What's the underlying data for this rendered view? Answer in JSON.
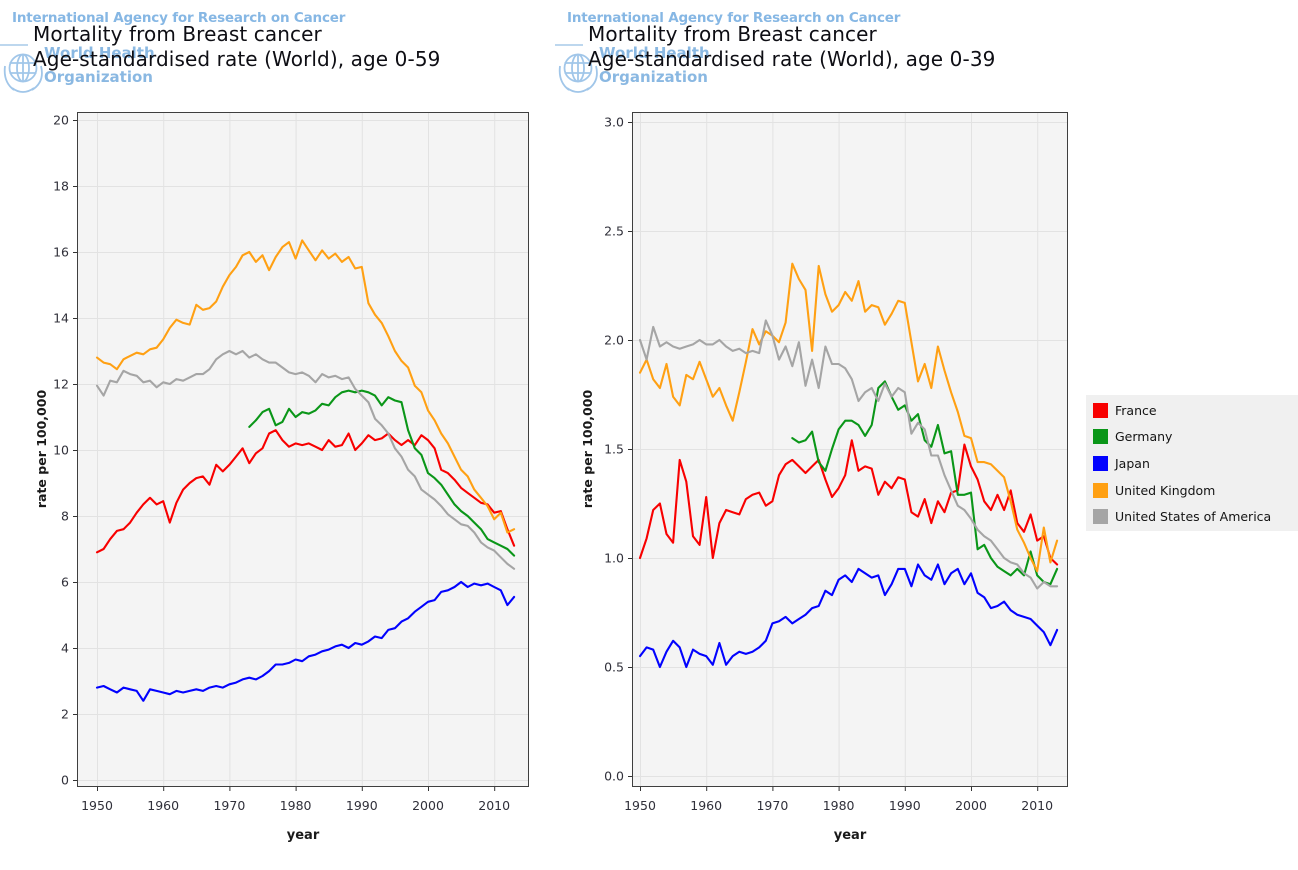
{
  "watermark": {
    "iarc": "International Agency for Research on Cancer",
    "who_line1": "World Health",
    "who_line2": "Organization"
  },
  "legend": {
    "items": [
      {
        "label": "France",
        "color": "#f80000"
      },
      {
        "label": "Germany",
        "color": "#0a9618"
      },
      {
        "label": "Japan",
        "color": "#0202fe"
      },
      {
        "label": "United Kingdom",
        "color": "#ffa013"
      },
      {
        "label": "United States of America",
        "color": "#a5a5a5"
      }
    ]
  },
  "chart_data": [
    {
      "type": "line",
      "title_line1": "Mortality from Breast cancer",
      "title_line2": "Age-standardised rate (World), age 0-59",
      "xlabel": "year",
      "ylabel": "rate per 100,000",
      "x_start": 1950,
      "x_end": 2013,
      "xticks": [
        1950,
        1960,
        1970,
        1980,
        1990,
        2000,
        2010
      ],
      "ylim": [
        0,
        20
      ],
      "yticks": [
        0,
        2,
        4,
        6,
        8,
        10,
        12,
        14,
        16,
        18,
        20
      ],
      "ytick_labels": [
        "0",
        "2",
        "4",
        "6",
        "8",
        "10",
        "12",
        "14",
        "16",
        "18",
        "20"
      ],
      "grid": true,
      "legend_position": "right-of-second-panel",
      "series": [
        {
          "name": "France",
          "color": "#f80000",
          "start_year": 1950,
          "values": [
            6.9,
            7.0,
            7.3,
            7.55,
            7.6,
            7.8,
            8.1,
            8.35,
            8.55,
            8.35,
            8.45,
            7.8,
            8.4,
            8.8,
            9.0,
            9.15,
            9.2,
            8.95,
            9.55,
            9.35,
            9.55,
            9.8,
            10.05,
            9.6,
            9.9,
            10.05,
            10.5,
            10.6,
            10.3,
            10.1,
            10.2,
            10.15,
            10.2,
            10.1,
            10.0,
            10.3,
            10.1,
            10.15,
            10.5,
            10.0,
            10.2,
            10.45,
            10.3,
            10.35,
            10.5,
            10.3,
            10.15,
            10.3,
            10.15,
            10.45,
            10.3,
            10.05,
            9.4,
            9.3,
            9.1,
            8.85,
            8.7,
            8.55,
            8.4,
            8.35,
            8.1,
            8.15,
            7.6,
            7.1
          ]
        },
        {
          "name": "Germany",
          "color": "#0a9618",
          "start_year": 1973,
          "values": [
            10.7,
            10.9,
            11.15,
            11.25,
            10.75,
            10.85,
            11.25,
            11.0,
            11.15,
            11.1,
            11.2,
            11.4,
            11.35,
            11.6,
            11.75,
            11.8,
            11.75,
            11.8,
            11.75,
            11.65,
            11.35,
            11.6,
            11.5,
            11.45,
            10.6,
            10.05,
            9.85,
            9.3,
            9.15,
            8.95,
            8.65,
            8.35,
            8.15,
            8.0,
            7.8,
            7.6,
            7.3,
            7.2,
            7.1,
            7.0,
            6.8
          ]
        },
        {
          "name": "Japan",
          "color": "#0202fe",
          "start_year": 1950,
          "values": [
            2.8,
            2.85,
            2.75,
            2.65,
            2.8,
            2.75,
            2.7,
            2.4,
            2.75,
            2.7,
            2.65,
            2.6,
            2.7,
            2.65,
            2.7,
            2.75,
            2.7,
            2.8,
            2.85,
            2.8,
            2.9,
            2.95,
            3.05,
            3.1,
            3.05,
            3.15,
            3.3,
            3.5,
            3.5,
            3.55,
            3.65,
            3.6,
            3.75,
            3.8,
            3.9,
            3.95,
            4.05,
            4.1,
            4.0,
            4.15,
            4.1,
            4.2,
            4.35,
            4.3,
            4.55,
            4.6,
            4.8,
            4.9,
            5.1,
            5.25,
            5.4,
            5.45,
            5.7,
            5.75,
            5.85,
            6.0,
            5.85,
            5.95,
            5.9,
            5.95,
            5.85,
            5.75,
            5.3,
            5.55
          ]
        },
        {
          "name": "United Kingdom",
          "color": "#ffa013",
          "start_year": 1950,
          "values": [
            12.8,
            12.65,
            12.6,
            12.45,
            12.75,
            12.85,
            12.95,
            12.9,
            13.05,
            13.1,
            13.35,
            13.7,
            13.95,
            13.85,
            13.8,
            14.4,
            14.25,
            14.3,
            14.5,
            14.95,
            15.3,
            15.55,
            15.9,
            16.0,
            15.7,
            15.9,
            15.45,
            15.85,
            16.15,
            16.3,
            15.8,
            16.35,
            16.05,
            15.75,
            16.05,
            15.8,
            15.95,
            15.7,
            15.85,
            15.5,
            15.55,
            14.45,
            14.1,
            13.85,
            13.45,
            13.0,
            12.7,
            12.5,
            11.95,
            11.75,
            11.2,
            10.9,
            10.5,
            10.2,
            9.8,
            9.4,
            9.2,
            8.8,
            8.55,
            8.3,
            7.9,
            8.1,
            7.5,
            7.6
          ]
        },
        {
          "name": "United States of America",
          "color": "#a5a5a5",
          "start_year": 1950,
          "values": [
            11.95,
            11.65,
            12.1,
            12.05,
            12.4,
            12.3,
            12.25,
            12.05,
            12.1,
            11.9,
            12.05,
            12.0,
            12.15,
            12.1,
            12.2,
            12.3,
            12.3,
            12.45,
            12.75,
            12.9,
            13.0,
            12.9,
            13.0,
            12.8,
            12.9,
            12.75,
            12.65,
            12.65,
            12.5,
            12.35,
            12.3,
            12.35,
            12.25,
            12.05,
            12.3,
            12.2,
            12.25,
            12.15,
            12.2,
            11.85,
            11.65,
            11.45,
            10.95,
            10.75,
            10.5,
            10.05,
            9.8,
            9.4,
            9.2,
            8.8,
            8.65,
            8.5,
            8.3,
            8.05,
            7.9,
            7.75,
            7.7,
            7.5,
            7.2,
            7.05,
            6.95,
            6.75,
            6.55,
            6.4
          ]
        }
      ]
    },
    {
      "type": "line",
      "title_line1": "Mortality from Breast cancer",
      "title_line2": "Age-standardised rate (World), age 0-39",
      "xlabel": "year",
      "ylabel": "rate per 100,000",
      "x_start": 1950,
      "x_end": 2013,
      "xticks": [
        1950,
        1960,
        1970,
        1980,
        1990,
        2000,
        2010
      ],
      "ylim": [
        0,
        3
      ],
      "yticks": [
        0,
        0.5,
        1,
        1.5,
        2,
        2.5,
        3
      ],
      "ytick_labels": [
        "0.0",
        "0.5",
        "1.0",
        "1.5",
        "2.0",
        "2.5",
        "3.0"
      ],
      "grid": true,
      "legend_position": "right",
      "series": [
        {
          "name": "France",
          "color": "#f80000",
          "start_year": 1950,
          "values": [
            1.0,
            1.09,
            1.22,
            1.25,
            1.11,
            1.07,
            1.45,
            1.35,
            1.1,
            1.06,
            1.28,
            1.0,
            1.16,
            1.22,
            1.21,
            1.2,
            1.27,
            1.29,
            1.3,
            1.24,
            1.26,
            1.38,
            1.43,
            1.45,
            1.42,
            1.39,
            1.42,
            1.45,
            1.36,
            1.28,
            1.32,
            1.38,
            1.54,
            1.4,
            1.42,
            1.41,
            1.29,
            1.35,
            1.32,
            1.37,
            1.36,
            1.21,
            1.19,
            1.27,
            1.16,
            1.26,
            1.21,
            1.3,
            1.31,
            1.52,
            1.42,
            1.36,
            1.26,
            1.22,
            1.29,
            1.22,
            1.31,
            1.16,
            1.12,
            1.2,
            1.08,
            1.1,
            1.0,
            0.97
          ]
        },
        {
          "name": "Germany",
          "color": "#0a9618",
          "start_year": 1973,
          "values": [
            1.55,
            1.53,
            1.54,
            1.58,
            1.44,
            1.4,
            1.5,
            1.59,
            1.63,
            1.63,
            1.61,
            1.56,
            1.61,
            1.78,
            1.81,
            1.74,
            1.68,
            1.7,
            1.63,
            1.66,
            1.54,
            1.51,
            1.61,
            1.48,
            1.49,
            1.29,
            1.29,
            1.3,
            1.04,
            1.06,
            1.0,
            0.96,
            0.94,
            0.92,
            0.95,
            0.92,
            1.03,
            0.92,
            0.89,
            0.88,
            0.95
          ]
        },
        {
          "name": "Japan",
          "color": "#0202fe",
          "start_year": 1950,
          "values": [
            0.55,
            0.59,
            0.58,
            0.5,
            0.57,
            0.62,
            0.59,
            0.5,
            0.58,
            0.56,
            0.55,
            0.51,
            0.61,
            0.51,
            0.55,
            0.57,
            0.56,
            0.57,
            0.59,
            0.62,
            0.7,
            0.71,
            0.73,
            0.7,
            0.72,
            0.74,
            0.77,
            0.78,
            0.85,
            0.83,
            0.9,
            0.92,
            0.89,
            0.95,
            0.93,
            0.91,
            0.92,
            0.83,
            0.88,
            0.95,
            0.95,
            0.87,
            0.97,
            0.92,
            0.9,
            0.97,
            0.88,
            0.93,
            0.95,
            0.88,
            0.93,
            0.84,
            0.82,
            0.77,
            0.78,
            0.8,
            0.76,
            0.74,
            0.73,
            0.72,
            0.69,
            0.66,
            0.6,
            0.67
          ]
        },
        {
          "name": "United Kingdom",
          "color": "#ffa013",
          "start_year": 1950,
          "values": [
            1.85,
            1.91,
            1.82,
            1.78,
            1.89,
            1.74,
            1.7,
            1.84,
            1.82,
            1.9,
            1.82,
            1.74,
            1.78,
            1.7,
            1.63,
            1.76,
            1.9,
            2.05,
            1.98,
            2.04,
            2.02,
            1.99,
            2.08,
            2.35,
            2.28,
            2.23,
            1.95,
            2.34,
            2.21,
            2.13,
            2.16,
            2.22,
            2.18,
            2.27,
            2.13,
            2.16,
            2.15,
            2.07,
            2.12,
            2.18,
            2.17,
            1.99,
            1.81,
            1.89,
            1.78,
            1.97,
            1.86,
            1.76,
            1.67,
            1.56,
            1.55,
            1.44,
            1.44,
            1.43,
            1.4,
            1.37,
            1.26,
            1.13,
            1.07,
            1.0,
            0.94,
            1.14,
            0.98,
            1.08
          ]
        },
        {
          "name": "United States of America",
          "color": "#a5a5a5",
          "start_year": 1950,
          "values": [
            2.0,
            1.91,
            2.06,
            1.97,
            1.99,
            1.97,
            1.96,
            1.97,
            1.98,
            2.0,
            1.98,
            1.98,
            2.0,
            1.97,
            1.95,
            1.96,
            1.94,
            1.95,
            1.94,
            2.09,
            2.02,
            1.91,
            1.97,
            1.88,
            1.99,
            1.79,
            1.91,
            1.78,
            1.97,
            1.89,
            1.89,
            1.87,
            1.82,
            1.72,
            1.76,
            1.78,
            1.72,
            1.8,
            1.74,
            1.78,
            1.76,
            1.57,
            1.62,
            1.59,
            1.47,
            1.47,
            1.38,
            1.31,
            1.24,
            1.22,
            1.18,
            1.13,
            1.1,
            1.08,
            1.04,
            1.0,
            0.98,
            0.97,
            0.93,
            0.91,
            0.86,
            0.89,
            0.87,
            0.87
          ]
        }
      ]
    }
  ]
}
